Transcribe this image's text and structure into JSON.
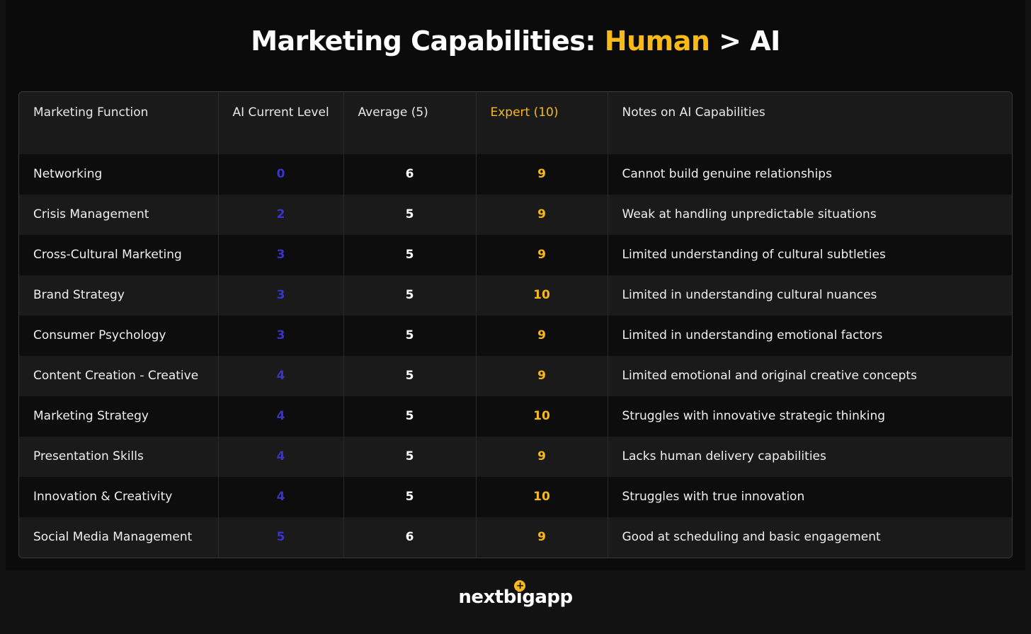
{
  "title": {
    "prefix": "Marketing Capabilities: ",
    "highlight": "Human",
    "suffix": " > AI"
  },
  "colors": {
    "background": "#0b0b0b",
    "accent_yellow": "#f9b916",
    "ai_blue": "#3a34c8",
    "text": "#f0f0f0"
  },
  "chart_data": {
    "type": "table",
    "title": "Marketing Capabilities: Human > AI",
    "columns": [
      "Marketing Function",
      "AI Current Level",
      "Average (5)",
      "Expert (10)",
      "Notes on AI Capabilities"
    ],
    "rows": [
      {
        "function": "Networking",
        "ai": 0,
        "average": 6,
        "expert": 9,
        "notes": "Cannot build genuine relationships"
      },
      {
        "function": "Crisis Management",
        "ai": 2,
        "average": 5,
        "expert": 9,
        "notes": "Weak at handling unpredictable situations"
      },
      {
        "function": "Cross-Cultural Marketing",
        "ai": 3,
        "average": 5,
        "expert": 9,
        "notes": "Limited understanding of cultural subtleties"
      },
      {
        "function": "Brand Strategy",
        "ai": 3,
        "average": 5,
        "expert": 10,
        "notes": "Limited in understanding cultural nuances"
      },
      {
        "function": "Consumer Psychology",
        "ai": 3,
        "average": 5,
        "expert": 9,
        "notes": "Limited in understanding emotional factors"
      },
      {
        "function": "Content Creation - Creative",
        "ai": 4,
        "average": 5,
        "expert": 9,
        "notes": "Limited emotional and original creative concepts"
      },
      {
        "function": "Marketing Strategy",
        "ai": 4,
        "average": 5,
        "expert": 10,
        "notes": "Struggles with innovative strategic thinking"
      },
      {
        "function": "Presentation Skills",
        "ai": 4,
        "average": 5,
        "expert": 9,
        "notes": "Lacks human delivery capabilities"
      },
      {
        "function": "Innovation & Creativity",
        "ai": 4,
        "average": 5,
        "expert": 10,
        "notes": "Struggles with true innovation"
      },
      {
        "function": "Social Media Management",
        "ai": 5,
        "average": 6,
        "expert": 9,
        "notes": "Good at scheduling and basic engagement"
      }
    ]
  },
  "logo": {
    "text_light": "next",
    "text_bold": "bigapp",
    "plus_glyph": "+"
  }
}
